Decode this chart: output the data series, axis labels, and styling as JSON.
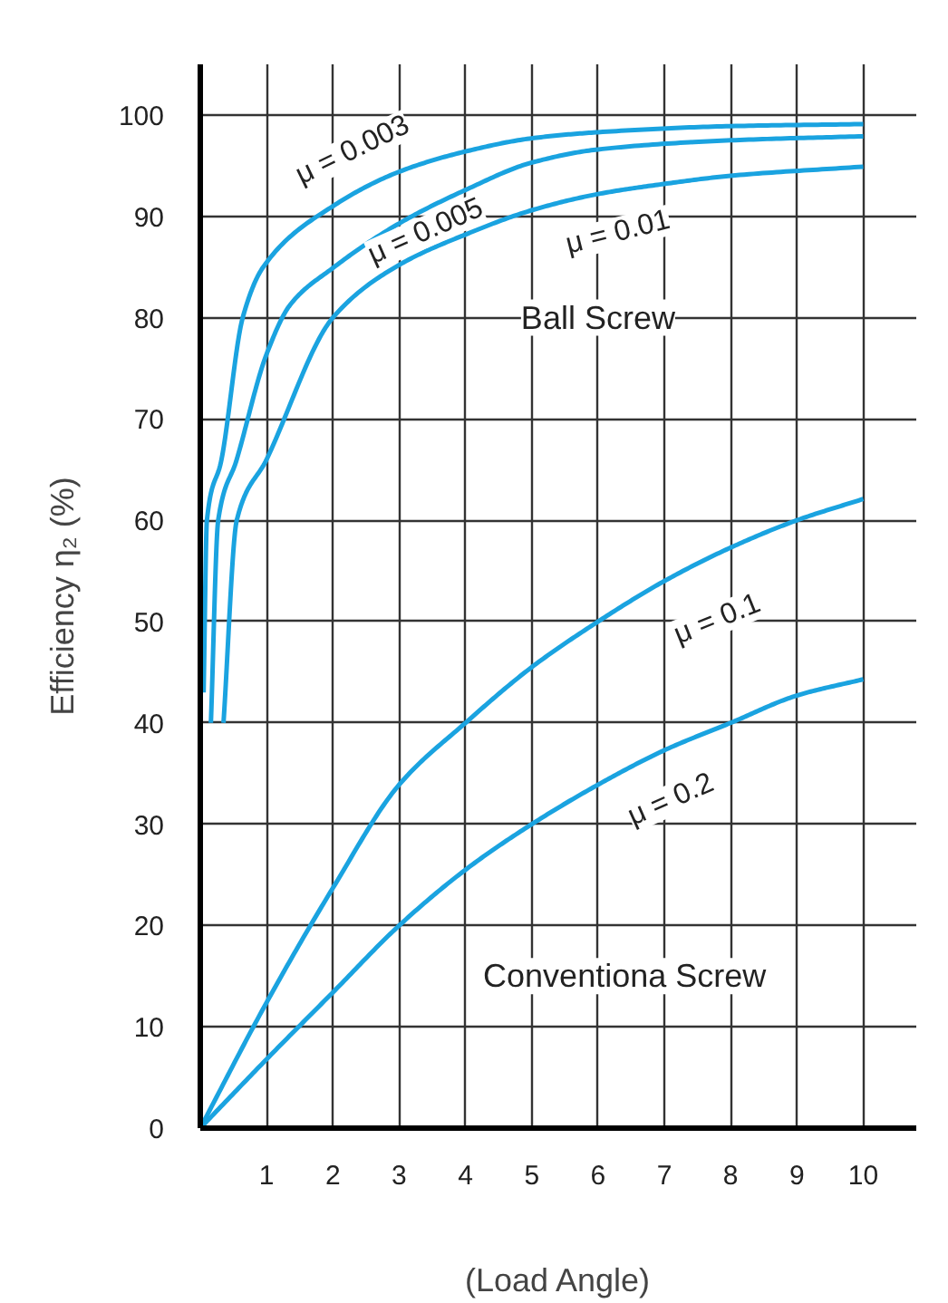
{
  "chart_data": {
    "type": "line",
    "xlabel": "(Load Angle)",
    "ylabel": "Efficiency η₂ (%)",
    "xlim": [
      0,
      10.8
    ],
    "ylim": [
      0,
      105
    ],
    "xticks": [
      1,
      2,
      3,
      4,
      5,
      6,
      7,
      8,
      9,
      10
    ],
    "yticks": [
      0,
      10,
      20,
      30,
      40,
      50,
      60,
      70,
      80,
      90,
      100
    ],
    "grid": true,
    "line_style": "solid",
    "series": [
      {
        "name": "μ = 0.003",
        "color": "#1aa3e0",
        "x": [
          0.05,
          0.1,
          0.32,
          0.64,
          0.95,
          2,
          3,
          4,
          5,
          6,
          8,
          10
        ],
        "values": [
          43,
          60,
          66,
          80,
          85,
          91,
          94.4,
          96.4,
          97.7,
          98.3,
          98.9,
          99.1
        ]
      },
      {
        "name": "μ = 0.005",
        "color": "#1aa3e0",
        "x": [
          0.16,
          0.27,
          0.55,
          1,
          1.36,
          2,
          3,
          4,
          5,
          6,
          8,
          10
        ],
        "values": [
          40,
          60,
          66,
          76.4,
          81.3,
          84.9,
          89.3,
          92.6,
          95.3,
          96.6,
          97.5,
          97.9
        ]
      },
      {
        "name": "μ = 0.01",
        "color": "#1aa3e0",
        "x": [
          0.35,
          0.55,
          1,
          2,
          3,
          4,
          5,
          6,
          7,
          8,
          10
        ],
        "values": [
          40,
          60,
          66,
          80,
          85.2,
          88.2,
          90.6,
          92.2,
          93.2,
          94,
          94.9
        ]
      },
      {
        "name": "μ = 0.1",
        "color": "#1aa3e0",
        "x": [
          0,
          1,
          2,
          3,
          4,
          5,
          6,
          7,
          8,
          9,
          10
        ],
        "values": [
          0,
          12.4,
          23.7,
          33.9,
          40,
          45.5,
          50,
          54,
          57.3,
          60,
          62.1
        ]
      },
      {
        "name": "μ = 0.2",
        "color": "#1aa3e0",
        "x": [
          0,
          1,
          2,
          3,
          4,
          5,
          6,
          7,
          8,
          9,
          10
        ],
        "values": [
          0,
          6.8,
          13.4,
          20,
          25.5,
          30,
          33.9,
          37.3,
          40,
          42.7,
          44.3
        ]
      }
    ],
    "annotations": [
      "Ball Screw",
      "Conventiona Screw"
    ]
  }
}
